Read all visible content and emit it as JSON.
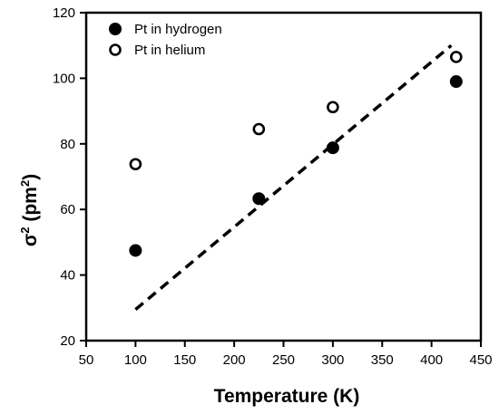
{
  "chart_data": {
    "type": "scatter",
    "title": "",
    "xlabel": "Temperature (K)",
    "ylabel": {
      "base": "σ",
      "sup1": "2",
      "mid": " (pm",
      "sup2": "2",
      "end": ")"
    },
    "xlim": [
      50,
      450
    ],
    "ylim": [
      20,
      120
    ],
    "xticks": [
      50,
      100,
      150,
      200,
      250,
      300,
      350,
      400,
      450
    ],
    "yticks": [
      20,
      40,
      60,
      80,
      100,
      120
    ],
    "grid": false,
    "legend_position": "top-left",
    "series": [
      {
        "name": "Pt in hydrogen",
        "marker": "filled-circle",
        "color": "#000000",
        "points": [
          {
            "x": 100,
            "y": 47.5
          },
          {
            "x": 225,
            "y": 63.3
          },
          {
            "x": 300,
            "y": 78.8
          },
          {
            "x": 425,
            "y": 99.0
          }
        ]
      },
      {
        "name": "Pt in helium",
        "marker": "open-circle",
        "color": "#000000",
        "points": [
          {
            "x": 100,
            "y": 73.8
          },
          {
            "x": 225,
            "y": 84.5
          },
          {
            "x": 300,
            "y": 91.2
          },
          {
            "x": 425,
            "y": 106.5
          }
        ]
      }
    ],
    "fit_line": {
      "style": "dashed",
      "color": "#000000",
      "start": {
        "x": 100,
        "y": 29.5
      },
      "end": {
        "x": 420,
        "y": 110.0
      }
    }
  }
}
